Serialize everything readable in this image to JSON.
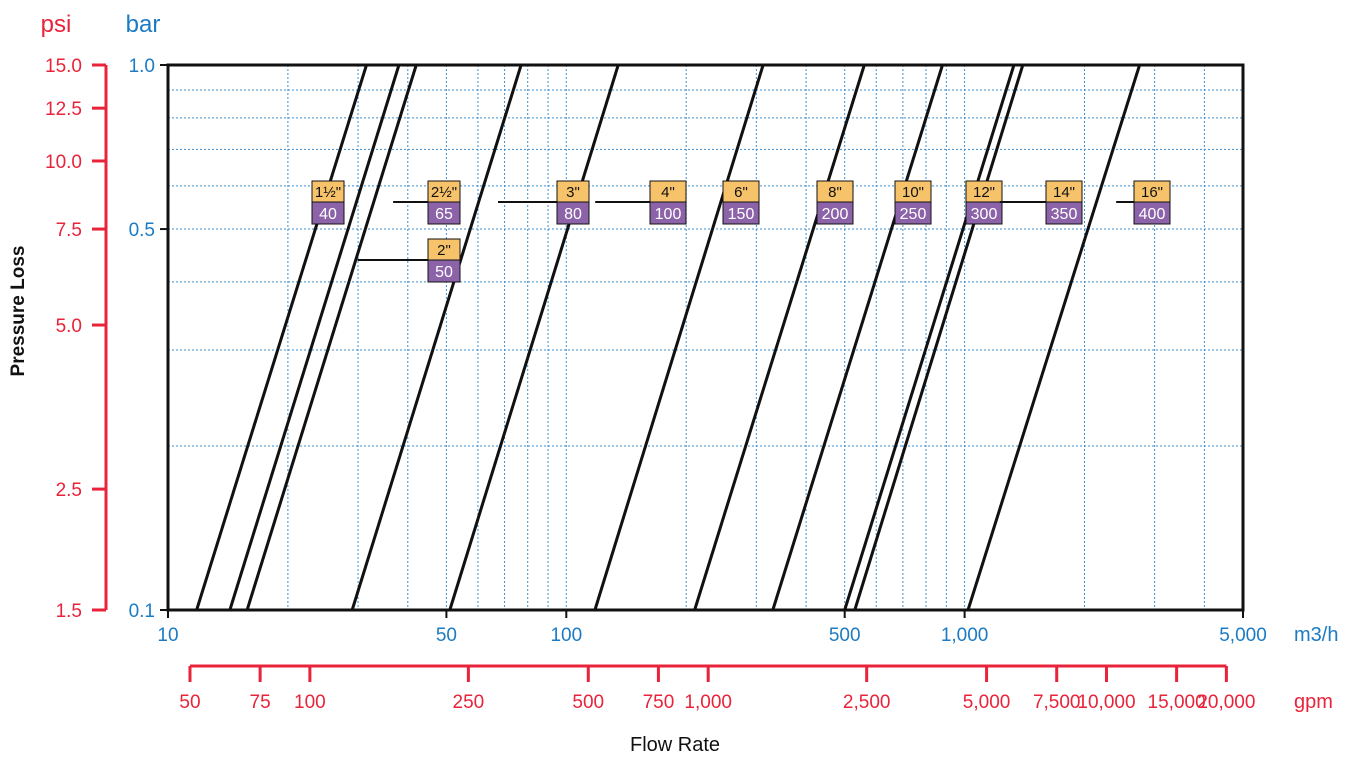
{
  "chart_data": {
    "type": "line",
    "title": "",
    "xlabel": "Flow Rate",
    "ylabel": "Pressure Loss",
    "x_unit_primary": "m3/h",
    "x_unit_secondary": "gpm",
    "y_unit_primary": "bar",
    "y_unit_secondary": "psi",
    "x_scale": "log",
    "y_scale": "log",
    "xlim": [
      10,
      5000
    ],
    "ylim": [
      0.1,
      1.0
    ],
    "grid": true,
    "x_ticks": [
      {
        "value": 10,
        "label": "10"
      },
      {
        "value": 50,
        "label": "50"
      },
      {
        "value": 100,
        "label": "100"
      },
      {
        "value": 500,
        "label": "500"
      },
      {
        "value": 1000,
        "label": "1,000"
      },
      {
        "value": 5000,
        "label": "5,000"
      }
    ],
    "y_ticks": [
      {
        "value": 0.1,
        "label": "0.1"
      },
      {
        "value": 0.5,
        "label": "0.5"
      },
      {
        "value": 1.0,
        "label": "1.0"
      }
    ],
    "psi_ticks": [
      {
        "value": 1.5,
        "label": "1.5"
      },
      {
        "value": 2.5,
        "label": "2.5"
      },
      {
        "value": 5.0,
        "label": "5.0"
      },
      {
        "value": 7.5,
        "label": "7.5"
      },
      {
        "value": 10.0,
        "label": "10.0"
      },
      {
        "value": 12.5,
        "label": "12.5"
      },
      {
        "value": 15.0,
        "label": "15.0"
      }
    ],
    "gpm_ticks": [
      {
        "value": 50,
        "label": "50"
      },
      {
        "value": 75,
        "label": "75"
      },
      {
        "value": 100,
        "label": "100"
      },
      {
        "value": 250,
        "label": "250"
      },
      {
        "value": 500,
        "label": "500"
      },
      {
        "value": 750,
        "label": "750"
      },
      {
        "value": 1000,
        "label": "1,000"
      },
      {
        "value": 2500,
        "label": "2,500"
      },
      {
        "value": 5000,
        "label": "5,000"
      },
      {
        "value": 7500,
        "label": "7,500"
      },
      {
        "value": 10000,
        "label": "10,000"
      },
      {
        "value": 15000,
        "label": "15,000"
      },
      {
        "value": 20000,
        "label": "20,000"
      }
    ],
    "series": [
      {
        "size_in": "1½\"",
        "dn": "40",
        "x_at_ymin": 11.8,
        "x_at_ymax": 31.5,
        "label_y": 0.73,
        "label_row": 0
      },
      {
        "size_in": "2\"",
        "dn": "50",
        "x_at_ymin": 14.3,
        "x_at_ymax": 38.0,
        "label_y": 0.57,
        "label_row": 1
      },
      {
        "size_in": "2½\"",
        "dn": "65",
        "x_at_ymin": 15.8,
        "x_at_ymax": 42.0,
        "label_y": 0.73,
        "label_row": 0
      },
      {
        "size_in": "3\"",
        "dn": "80",
        "x_at_ymin": 29.0,
        "x_at_ymax": 77.0,
        "label_y": 0.73,
        "label_row": 0
      },
      {
        "size_in": "4\"",
        "dn": "100",
        "x_at_ymin": 51.0,
        "x_at_ymax": 135.0,
        "label_y": 0.73,
        "label_row": 0
      },
      {
        "size_in": "6\"",
        "dn": "150",
        "x_at_ymin": 118.0,
        "x_at_ymax": 312.0,
        "label_y": 0.73,
        "label_row": 0
      },
      {
        "size_in": "8\"",
        "dn": "200",
        "x_at_ymin": 210.0,
        "x_at_ymax": 560.0,
        "label_y": 0.73,
        "label_row": 0
      },
      {
        "size_in": "10\"",
        "dn": "250",
        "x_at_ymin": 330.0,
        "x_at_ymax": 880.0,
        "label_y": 0.73,
        "label_row": 0
      },
      {
        "size_in": "12\"",
        "dn": "300",
        "x_at_ymin": 500.0,
        "x_at_ymax": 1330.0,
        "label_y": 0.73,
        "label_row": 0
      },
      {
        "size_in": "14\"",
        "dn": "350",
        "x_at_ymin": 530.0,
        "x_at_ymax": 1400.0,
        "label_y": 0.73,
        "label_row": 0
      },
      {
        "size_in": "16\"",
        "dn": "400",
        "x_at_ymin": 1020.0,
        "x_at_ymax": 2750.0,
        "label_y": 0.73,
        "label_row": 0
      }
    ],
    "colors": {
      "red": "#e8233a",
      "blue": "#1b7bc4",
      "grid": "#3b8fd0",
      "line": "#111111",
      "label_top_fill": "#f6c36a",
      "label_bottom_fill": "#8c63a8"
    }
  }
}
